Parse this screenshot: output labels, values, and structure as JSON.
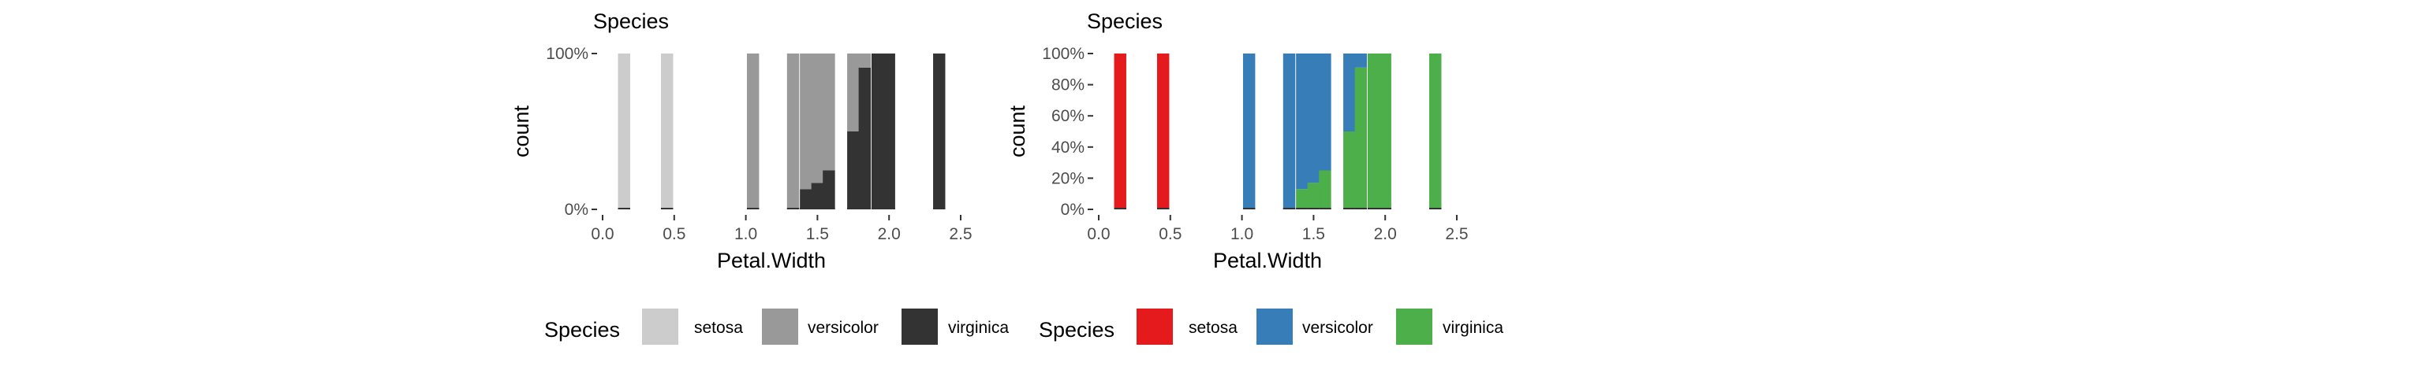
{
  "chart_data": [
    {
      "type": "histogram",
      "position": "fill",
      "title": "Species",
      "xlabel": "Petal.Width",
      "ylabel": "count",
      "xlim": [
        0.0,
        2.5
      ],
      "ylim": [
        0,
        1
      ],
      "x_ticks": [
        "0.0",
        "0.5",
        "1.0",
        "1.5",
        "2.0",
        "2.5"
      ],
      "y_ticks": [
        "0%",
        "100%"
      ],
      "legend": {
        "title": "Species",
        "placement": "bottom"
      },
      "series": [
        {
          "name": "setosa",
          "color": "#cccccc"
        },
        {
          "name": "versicolor",
          "color": "#999999"
        },
        {
          "name": "virginica",
          "color": "#333333"
        }
      ],
      "bins": [
        {
          "x": 0.15,
          "setosa": 1.0,
          "versicolor": 0.0,
          "virginica": 0.0
        },
        {
          "x": 0.45,
          "setosa": 1.0,
          "versicolor": 0.0,
          "virginica": 0.0
        },
        {
          "x": 1.05,
          "setosa": 0.0,
          "versicolor": 1.0,
          "virginica": 0.0
        },
        {
          "x": 1.33,
          "setosa": 0.0,
          "versicolor": 1.0,
          "virginica": 0.0
        },
        {
          "x": 1.42,
          "setosa": 0.0,
          "versicolor": 0.87,
          "virginica": 0.13
        },
        {
          "x": 1.5,
          "setosa": 0.0,
          "versicolor": 0.83,
          "virginica": 0.17
        },
        {
          "x": 1.58,
          "setosa": 0.0,
          "versicolor": 0.75,
          "virginica": 0.25
        },
        {
          "x": 1.75,
          "setosa": 0.0,
          "versicolor": 0.5,
          "virginica": 0.5
        },
        {
          "x": 1.83,
          "setosa": 0.0,
          "versicolor": 0.09,
          "virginica": 0.91
        },
        {
          "x": 1.92,
          "setosa": 0.0,
          "versicolor": 0.0,
          "virginica": 1.0
        },
        {
          "x": 2.0,
          "setosa": 0.0,
          "versicolor": 0.0,
          "virginica": 1.0
        },
        {
          "x": 2.35,
          "setosa": 0.0,
          "versicolor": 0.0,
          "virginica": 1.0
        }
      ]
    },
    {
      "type": "histogram",
      "position": "fill",
      "title": "Species",
      "xlabel": "Petal.Width",
      "ylabel": "count",
      "xlim": [
        0.0,
        2.5
      ],
      "ylim": [
        0,
        1
      ],
      "x_ticks": [
        "0.0",
        "0.5",
        "1.0",
        "1.5",
        "2.0",
        "2.5"
      ],
      "y_ticks": [
        "0%",
        "20%",
        "40%",
        "60%",
        "80%",
        "100%"
      ],
      "legend": {
        "title": "Species",
        "placement": "bottom"
      },
      "series": [
        {
          "name": "setosa",
          "color": "#e41a1c"
        },
        {
          "name": "versicolor",
          "color": "#377eb8"
        },
        {
          "name": "virginica",
          "color": "#4daf4a"
        }
      ],
      "bins": [
        {
          "x": 0.15,
          "setosa": 1.0,
          "versicolor": 0.0,
          "virginica": 0.0
        },
        {
          "x": 0.45,
          "setosa": 1.0,
          "versicolor": 0.0,
          "virginica": 0.0
        },
        {
          "x": 1.05,
          "setosa": 0.0,
          "versicolor": 1.0,
          "virginica": 0.0
        },
        {
          "x": 1.33,
          "setosa": 0.0,
          "versicolor": 1.0,
          "virginica": 0.0
        },
        {
          "x": 1.42,
          "setosa": 0.0,
          "versicolor": 0.87,
          "virginica": 0.13
        },
        {
          "x": 1.5,
          "setosa": 0.0,
          "versicolor": 0.83,
          "virginica": 0.17
        },
        {
          "x": 1.58,
          "setosa": 0.0,
          "versicolor": 0.75,
          "virginica": 0.25
        },
        {
          "x": 1.75,
          "setosa": 0.0,
          "versicolor": 0.5,
          "virginica": 0.5
        },
        {
          "x": 1.83,
          "setosa": 0.0,
          "versicolor": 0.09,
          "virginica": 0.91
        },
        {
          "x": 1.92,
          "setosa": 0.0,
          "versicolor": 0.0,
          "virginica": 1.0
        },
        {
          "x": 2.0,
          "setosa": 0.0,
          "versicolor": 0.0,
          "virginica": 1.0
        },
        {
          "x": 2.35,
          "setosa": 0.0,
          "versicolor": 0.0,
          "virginica": 1.0
        }
      ]
    }
  ]
}
